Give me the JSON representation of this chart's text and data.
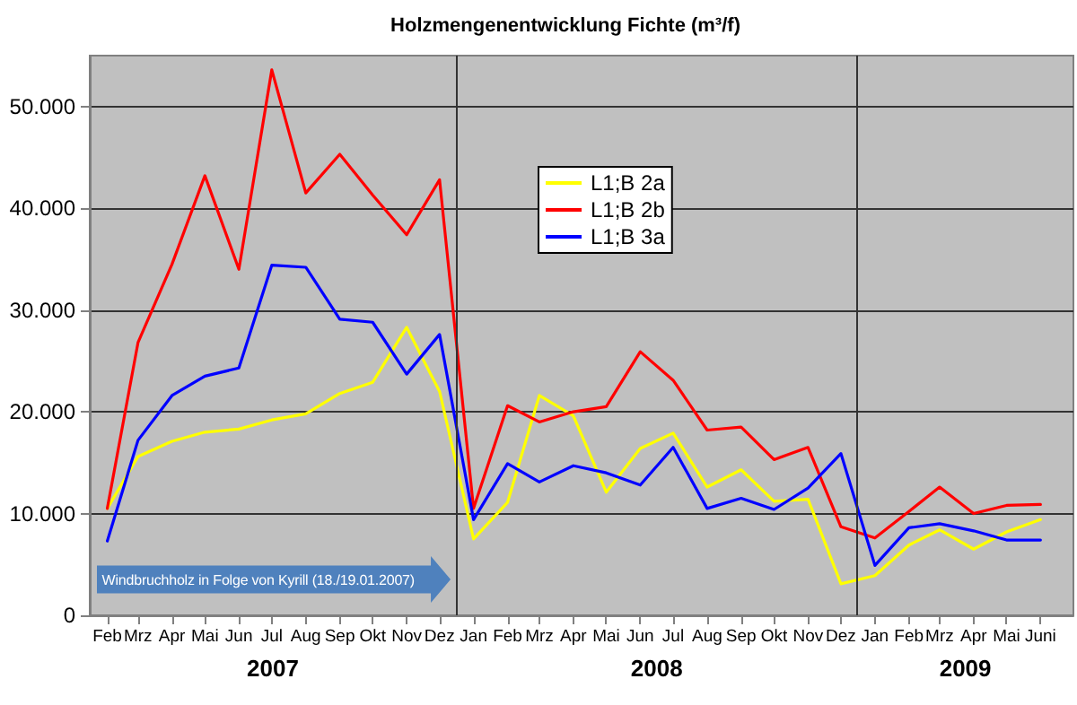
{
  "chart_data": {
    "type": "line",
    "title": "Holzmengenentwicklung Fichte (m³/f)",
    "x": [
      "2007-02",
      "2007-03",
      "2007-04",
      "2007-05",
      "2007-06",
      "2007-07",
      "2007-08",
      "2007-09",
      "2007-10",
      "2007-11",
      "2007-12",
      "2008-01",
      "2008-02",
      "2008-03",
      "2008-04",
      "2008-05",
      "2008-06",
      "2008-07",
      "2008-08",
      "2008-09",
      "2008-10",
      "2008-11",
      "2008-12",
      "2009-01",
      "2009-02",
      "2009-03",
      "2009-04",
      "2009-05",
      "2009-06"
    ],
    "series": [
      {
        "name": "L1;B 2a",
        "color": "#ffff00",
        "values": [
          10500,
          15600,
          17100,
          18000,
          18300,
          19200,
          19800,
          21800,
          22900,
          28300,
          22000,
          7500,
          11100,
          21600,
          19600,
          12100,
          16400,
          17900,
          12600,
          14300,
          11200,
          11400,
          3100,
          3900,
          6900,
          8400,
          6500,
          8200,
          9400
        ]
      },
      {
        "name": "L1;B 2b",
        "color": "#ff0000",
        "values": [
          10500,
          26800,
          34500,
          43200,
          34000,
          53600,
          41500,
          45300,
          41300,
          37400,
          42800,
          10500,
          20600,
          19000,
          20000,
          20500,
          25900,
          23100,
          18200,
          18500,
          15300,
          16500,
          8700,
          7600,
          10200,
          12600,
          10000,
          10800,
          10900
        ]
      },
      {
        "name": "L1;B 3a",
        "color": "#0000ff",
        "values": [
          7300,
          17200,
          21600,
          23500,
          24300,
          34400,
          34200,
          29100,
          28800,
          23700,
          27600,
          9400,
          14900,
          13100,
          14700,
          14000,
          12800,
          16500,
          10500,
          11500,
          10400,
          12500,
          15900,
          4900,
          8600,
          9000,
          8300,
          7400,
          7400
        ]
      }
    ],
    "xlim": [
      "2007-01-16",
      "2009-07-01"
    ],
    "xticks": [
      {
        "value": "2007-02",
        "label": "Feb"
      },
      {
        "value": "2007-03",
        "label": "Mrz"
      },
      {
        "value": "2007-04",
        "label": "Apr"
      },
      {
        "value": "2007-05",
        "label": "Mai"
      },
      {
        "value": "2007-06",
        "label": "Jun"
      },
      {
        "value": "2007-07",
        "label": "Jul"
      },
      {
        "value": "2007-08",
        "label": "Aug"
      },
      {
        "value": "2007-09",
        "label": "Sep"
      },
      {
        "value": "2007-10",
        "label": "Okt"
      },
      {
        "value": "2007-11",
        "label": "Nov"
      },
      {
        "value": "2007-12",
        "label": "Dez"
      },
      {
        "value": "2008-01",
        "label": "Jan"
      },
      {
        "value": "2008-02",
        "label": "Feb"
      },
      {
        "value": "2008-03",
        "label": "Mrz"
      },
      {
        "value": "2008-04",
        "label": "Apr"
      },
      {
        "value": "2008-05",
        "label": "Mai"
      },
      {
        "value": "2008-06",
        "label": "Jun"
      },
      {
        "value": "2008-07",
        "label": "Jul"
      },
      {
        "value": "2008-08",
        "label": "Aug"
      },
      {
        "value": "2008-09",
        "label": "Sep"
      },
      {
        "value": "2008-10",
        "label": "Okt"
      },
      {
        "value": "2008-11",
        "label": "Nov"
      },
      {
        "value": "2008-12",
        "label": "Dez"
      },
      {
        "value": "2009-01",
        "label": "Jan"
      },
      {
        "value": "2009-02",
        "label": "Feb"
      },
      {
        "value": "2009-03",
        "label": "Mrz"
      },
      {
        "value": "2009-04",
        "label": "Apr"
      },
      {
        "value": "2009-05",
        "label": "Mai"
      },
      {
        "value": "2009-06",
        "label": "Juni"
      }
    ],
    "ylim": [
      0,
      55000
    ],
    "yticks": [
      0,
      {
        "value": 10000,
        "label": "10.000"
      },
      {
        "value": 20000,
        "label": "20.000"
      },
      {
        "value": 30000,
        "label": "30.000"
      },
      {
        "value": 40000,
        "label": "40.000"
      },
      {
        "value": 50000,
        "label": "50.000"
      }
    ],
    "ref_lines": [
      {
        "axis": "x",
        "value": "2007-12-16"
      },
      {
        "axis": "x",
        "value": "2008-12-16"
      }
    ],
    "annotations": [
      "Windbruchholz in Folge von Kyrill (18./19.01.2007)",
      "2007",
      "2008",
      "2009"
    ],
    "grid": "y",
    "legend": "top",
    "marker": "none",
    "line_style": "solid"
  }
}
